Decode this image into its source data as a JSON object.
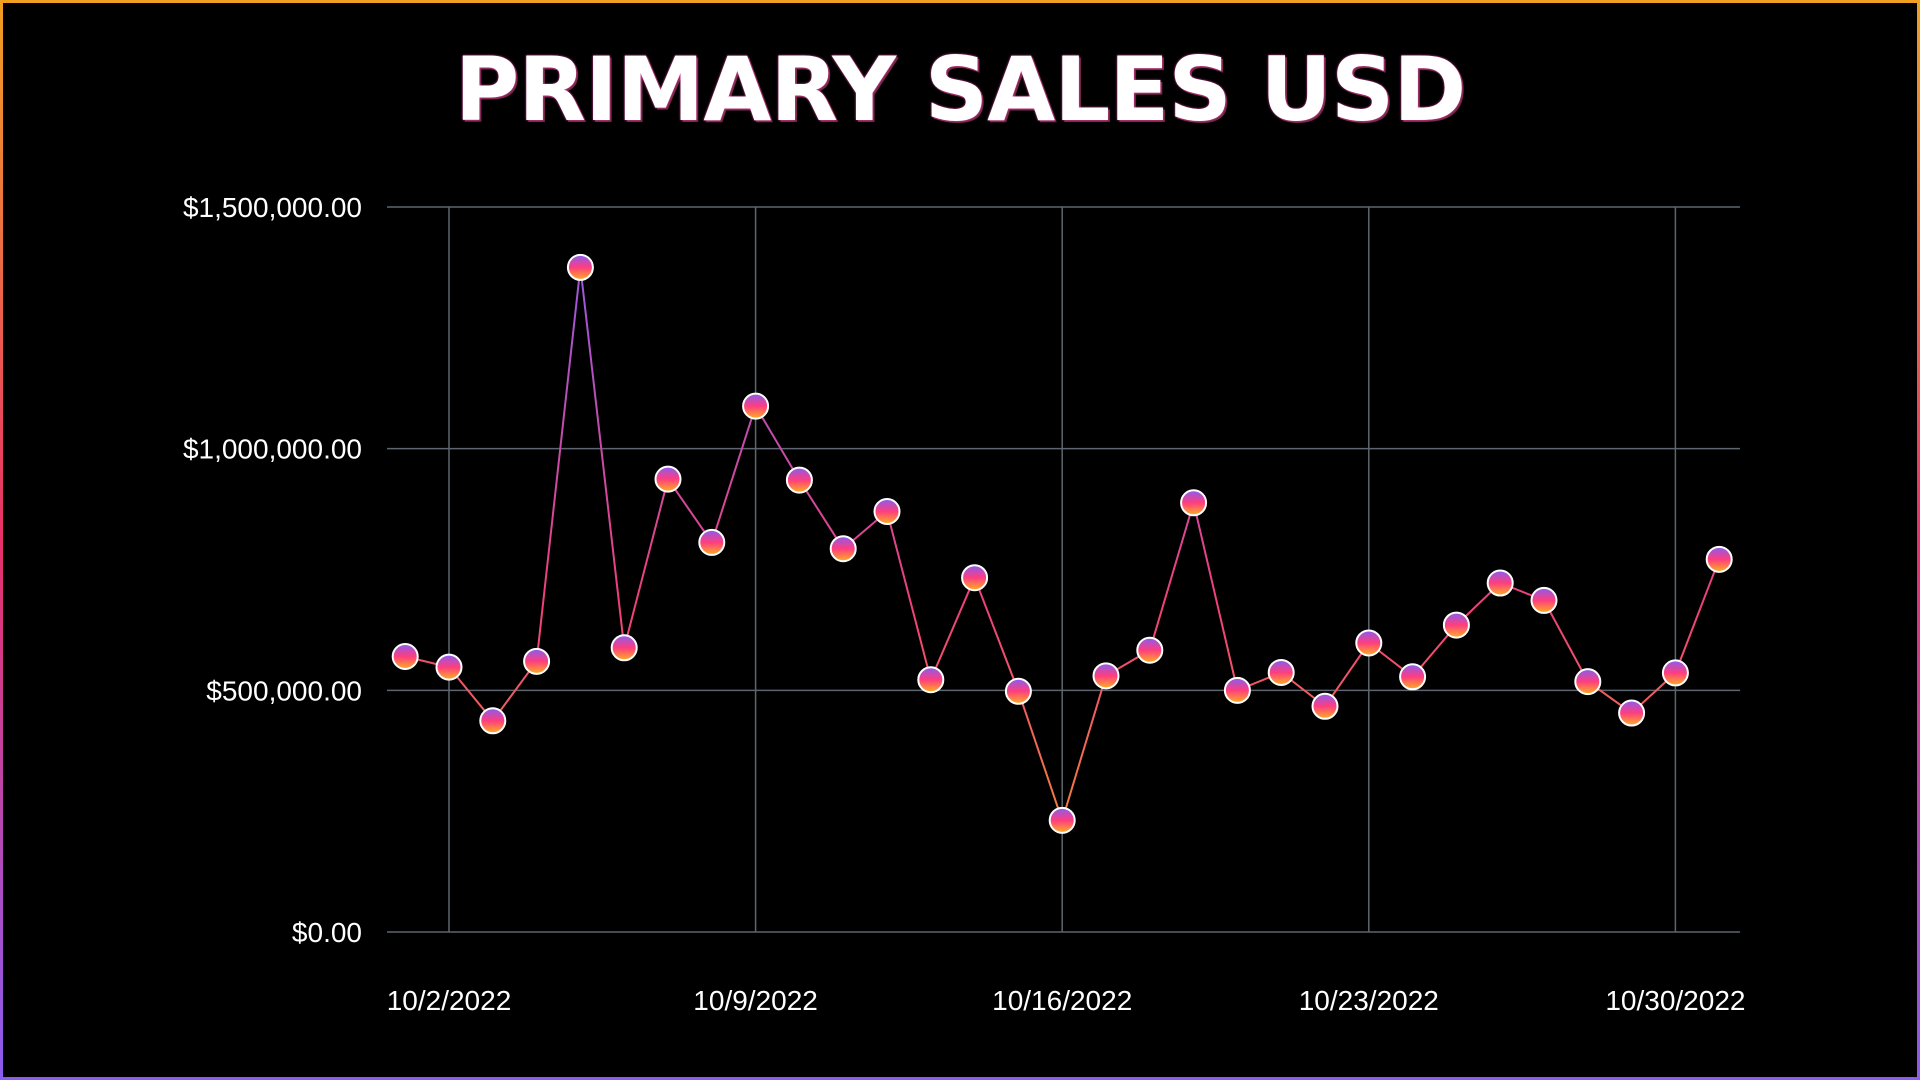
{
  "chart_data": {
    "type": "line",
    "title": "PRIMARY SALES USD",
    "xlabel": "",
    "ylabel": "",
    "ylim": [
      0,
      1500000
    ],
    "grid": true,
    "legend": "none",
    "y_ticks": [
      {
        "value": 0,
        "label": "$0.00"
      },
      {
        "value": 500000,
        "label": "$500,000.00"
      },
      {
        "value": 1000000,
        "label": "$1,000,000.00"
      },
      {
        "value": 1500000,
        "label": "$1,500,000.00"
      }
    ],
    "x_ticks": [
      {
        "date": "2022-10-02",
        "label": "10/2/2022"
      },
      {
        "date": "2022-10-09",
        "label": "10/9/2022"
      },
      {
        "date": "2022-10-16",
        "label": "10/16/2022"
      },
      {
        "date": "2022-10-23",
        "label": "10/23/2022"
      },
      {
        "date": "2022-10-30",
        "label": "10/30/2022"
      }
    ],
    "colors": {
      "line_top": "#8a5cf0",
      "line_mid": "#f0407a",
      "line_bottom": "#f5a020",
      "marker_top": "#8a5cf0",
      "marker_mid": "#ff3d7f",
      "marker_bottom": "#ffb020",
      "grid": "#5d6670"
    },
    "x": [
      "2022-10-01",
      "2022-10-02",
      "2022-10-03",
      "2022-10-04",
      "2022-10-05",
      "2022-10-06",
      "2022-10-07",
      "2022-10-08",
      "2022-10-09",
      "2022-10-10",
      "2022-10-11",
      "2022-10-12",
      "2022-10-13",
      "2022-10-14",
      "2022-10-15",
      "2022-10-16",
      "2022-10-17",
      "2022-10-18",
      "2022-10-19",
      "2022-10-20",
      "2022-10-21",
      "2022-10-22",
      "2022-10-23",
      "2022-10-24",
      "2022-10-25",
      "2022-10-26",
      "2022-10-27",
      "2022-10-28",
      "2022-10-29",
      "2022-10-30",
      "2022-10-31"
    ],
    "series": [
      {
        "values": [
          570000,
          548000,
          437000,
          560000,
          1375000,
          588000,
          937000,
          806000,
          1088000,
          935000,
          793000,
          870000,
          522000,
          733000,
          498000,
          231000,
          530000,
          583000,
          888000,
          500000,
          537000,
          467000,
          598000,
          528000,
          635000,
          722000,
          686000,
          518000,
          453000,
          536000,
          771000
        ]
      }
    ]
  }
}
